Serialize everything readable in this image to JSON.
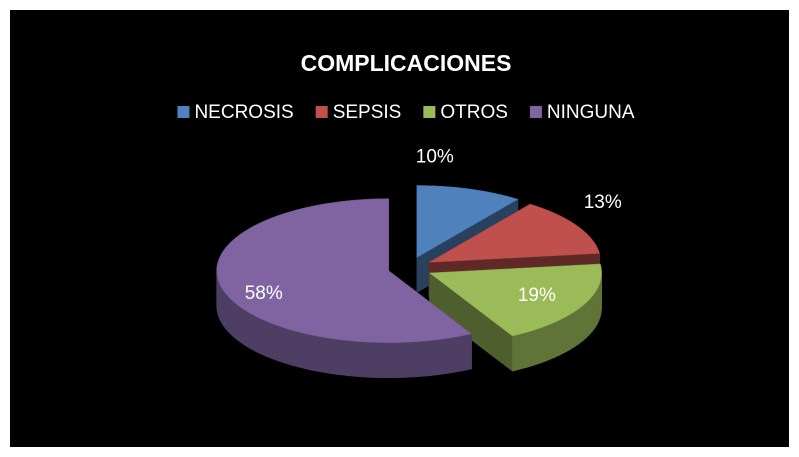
{
  "chart_data": {
    "type": "pie",
    "title": "COMPLICACIONES",
    "categories": [
      "NECROSIS",
      "SEPSIS",
      "OTROS",
      "NINGUNA"
    ],
    "values": [
      10,
      13,
      19,
      58
    ],
    "value_labels": [
      "10%",
      "13%",
      "19%",
      "58%"
    ],
    "colors": [
      "#4f81bd",
      "#c0504d",
      "#9bbb59",
      "#8064a2"
    ],
    "legend": "top"
  }
}
